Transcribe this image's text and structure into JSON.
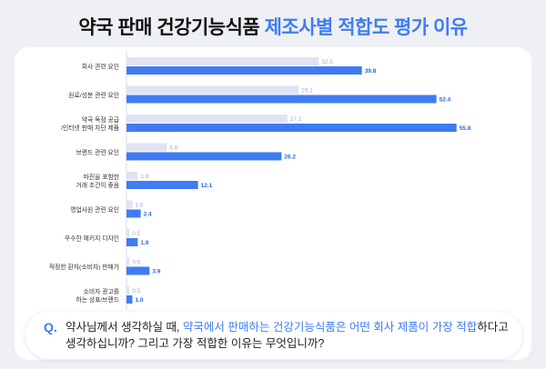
{
  "title": {
    "main": "약국 판매 건강기능식품",
    "accent": "제조사별 적합도 평가 이유"
  },
  "colors": {
    "series_light": "#dfe3f4",
    "series_dark": "#3f7cf2",
    "light_label": "#a6acb8",
    "dark_label": "#2f67e0"
  },
  "chart_data": {
    "type": "bar",
    "orientation": "horizontal",
    "categories": [
      [
        "회사 관련 요인"
      ],
      [
        "원료/성분 관련 요인"
      ],
      [
        "약국 독점 공급",
        "/인터넷 판매 차단 제품"
      ],
      [
        "브랜드 관련 요인"
      ],
      [
        "마진을 포함한",
        "거래 조건이 좋음"
      ],
      [
        "영업사원 관련 요인"
      ],
      [
        "우수한 패키지 디자인"
      ],
      [
        "적정한 환자(소비자) 판매가"
      ],
      [
        "소비자 광고를",
        "하는 상표/브랜드"
      ]
    ],
    "series": [
      {
        "values": [
          32.5,
          29.1,
          27.2,
          6.8,
          1.9,
          1.0,
          0.5,
          0.5,
          0.5
        ]
      },
      {
        "values": [
          39.8,
          52.4,
          55.8,
          26.2,
          12.1,
          2.4,
          1.9,
          3.9,
          1.0
        ]
      }
    ],
    "xlim": [
      0,
      60
    ]
  },
  "question": {
    "mark": "Q.",
    "part1": "약사님께서 생각하실 때, ",
    "highlight": "약국에서 판매하는 건강기능식품은 어떤 회사 제품이 가장 적합",
    "part2": "하다고 생각하십니까? 그리고 가장 적합한 이유는 무엇입니까?"
  }
}
